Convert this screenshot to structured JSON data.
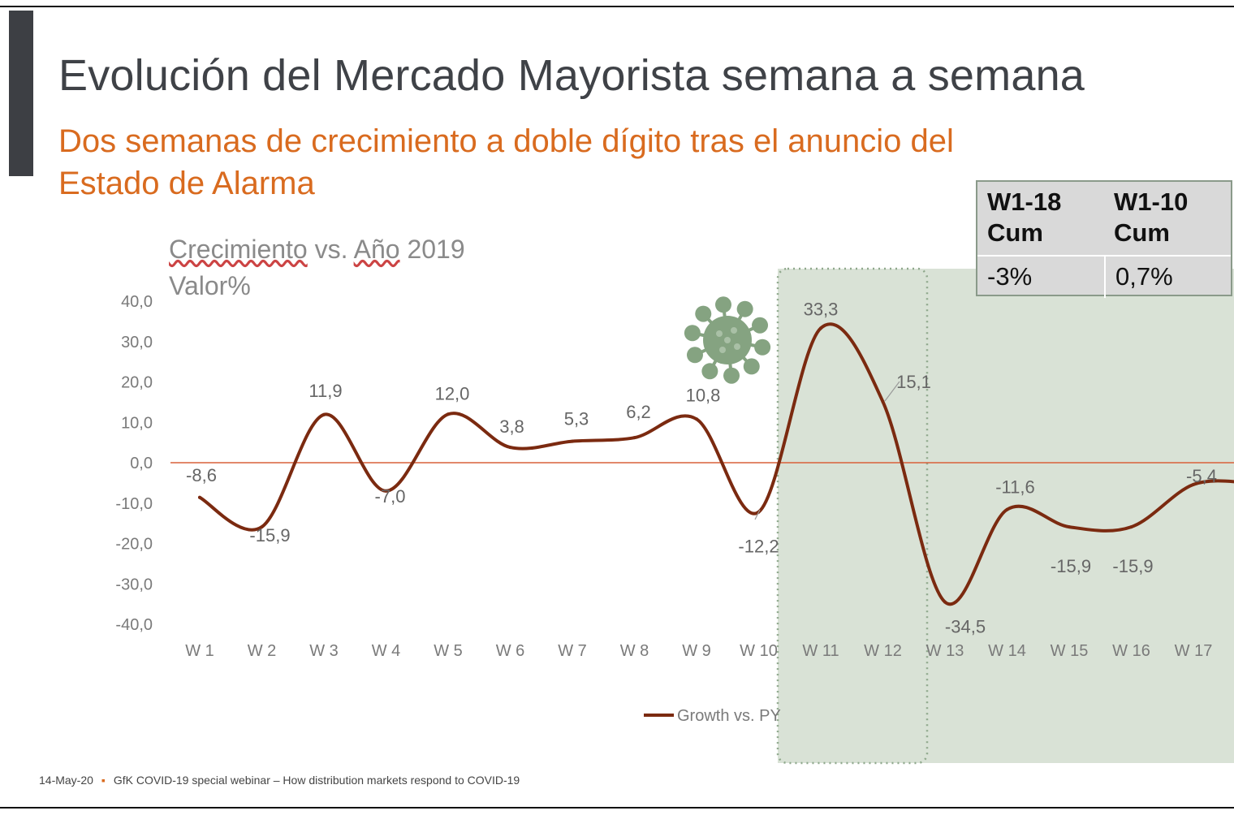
{
  "slide": {
    "title": "Evolución del Mercado Mayorista semana a semana",
    "subtitle": "Dos semanas de crecimiento a doble dígito tras el anuncio del Estado de Alarma",
    "chart_title_line1_a": "Crecimiento",
    "chart_title_line1_b": " vs. ",
    "chart_title_line1_c": "Año",
    "chart_title_line1_d": " 2019",
    "chart_title_line2": "Valor%",
    "virus_icon": "coronavirus-icon",
    "highlight_color": "#d9e2d6",
    "footer_date": "14-May-20",
    "footer_separator": "▪",
    "footer_text": "GfK COVID-19 special webinar – How distribution markets respond to COVID-19"
  },
  "cum_table": {
    "head1": "W1-18 Cum",
    "head2": "W1-10 Cum",
    "val1": "-3%",
    "val2": "0,7%"
  },
  "chart_data": {
    "type": "line",
    "categories": [
      "W 1",
      "W 2",
      "W 3",
      "W 4",
      "W 5",
      "W 6",
      "W 7",
      "W 8",
      "W 9",
      "W 10",
      "W 11",
      "W 12",
      "W 13",
      "W 14",
      "W 15",
      "W 16",
      "W 17"
    ],
    "series": [
      {
        "name": "Growth vs. PY",
        "color": "#7b2a10",
        "values": [
          -8.6,
          -15.9,
          11.9,
          -7.0,
          12.0,
          3.8,
          5.3,
          6.2,
          10.8,
          -12.2,
          33.3,
          15.1,
          -34.5,
          -11.6,
          -15.9,
          -15.9,
          -5.4
        ],
        "labels": [
          "-8,6",
          "-15,9",
          "11,9",
          "-7,0",
          "12,0",
          "3,8",
          "5,3",
          "6,2",
          "10,8",
          "-12,2",
          "33,3",
          "15,1",
          "-34,5",
          "-11,6",
          "-15,9",
          "-15,9",
          "-5,4"
        ]
      }
    ],
    "y_ticks": [
      "40,0",
      "30,0",
      "20,0",
      "10,0",
      "0,0",
      "-10,0",
      "-20,0",
      "-30,0",
      "-40,0"
    ],
    "ylim": [
      -40,
      40
    ],
    "zero_line_color": "#d9603a",
    "title": "Crecimiento vs. Año 2019",
    "ylabel": "Valor%",
    "xlabel": "",
    "legend": "bottom",
    "grid": false
  }
}
